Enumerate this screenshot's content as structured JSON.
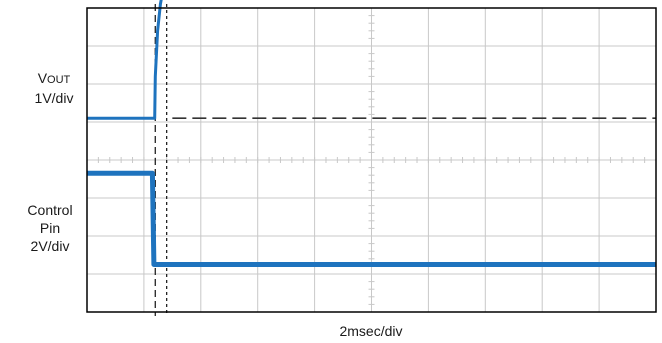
{
  "chart_data": {
    "type": "line",
    "title": "",
    "labels": {
      "vout_prefix": "V",
      "vout_sub": "OUT",
      "vout_scale": "1V/div",
      "ctrl_line1": "Control",
      "ctrl_line2": "Pin",
      "ctrl_scale": "2V/div",
      "xlabel": "2msec/div"
    },
    "grid": {
      "x_divisions": 10,
      "y_divisions": 8,
      "minor_ticks": 5
    },
    "x_range_ms": [
      -2.4,
      17.6
    ],
    "cursors_ms": [
      0,
      0.4
    ],
    "zero_reference_div": 5.1,
    "series": [
      {
        "name": "VOUT",
        "volts_per_div": 1,
        "ground_div": 5.1,
        "x": [
          -2.4,
          -0.02,
          0.0,
          0.08,
          0.18,
          0.3,
          0.45,
          0.6,
          17.6
        ],
        "y": [
          0.0,
          0.0,
          1.1,
          2.3,
          3.0,
          3.5,
          3.8,
          4.1,
          4.1
        ]
      },
      {
        "name": "Control Pin",
        "volts_per_div": 2,
        "ground_div": 1.2,
        "x": [
          -2.4,
          -0.1,
          -0.05,
          0.1,
          17.6
        ],
        "y": [
          4.9,
          4.9,
          0.1,
          0.1,
          0.1
        ]
      }
    ],
    "colors": {
      "trace": "#1e73be",
      "grid": "#c8c8c8",
      "frame": "#000000",
      "reference": "#333333"
    }
  }
}
